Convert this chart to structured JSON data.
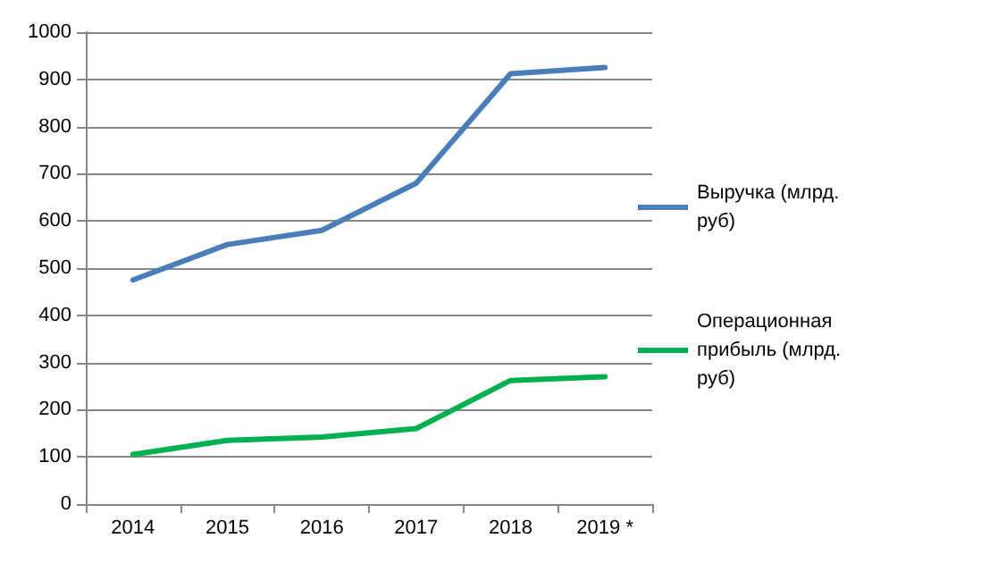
{
  "chart_data": {
    "type": "line",
    "categories": [
      "2014",
      "2015",
      "2016",
      "2017",
      "2018",
      "2019 *"
    ],
    "series": [
      {
        "name": "Выручка (млрд. руб)",
        "color": "#4a7ebb",
        "values": [
          475,
          550,
          580,
          680,
          912,
          925
        ]
      },
      {
        "name": "Операционная прибыль (млрд. руб)",
        "color": "#00b050",
        "values": [
          105,
          135,
          142,
          160,
          262,
          270
        ]
      }
    ],
    "ylim": [
      0,
      1000
    ],
    "yticks": [
      0,
      100,
      200,
      300,
      400,
      500,
      600,
      700,
      800,
      900,
      1000
    ],
    "grid": "y",
    "legend": "right",
    "marker": "none",
    "line_style": "solid"
  }
}
